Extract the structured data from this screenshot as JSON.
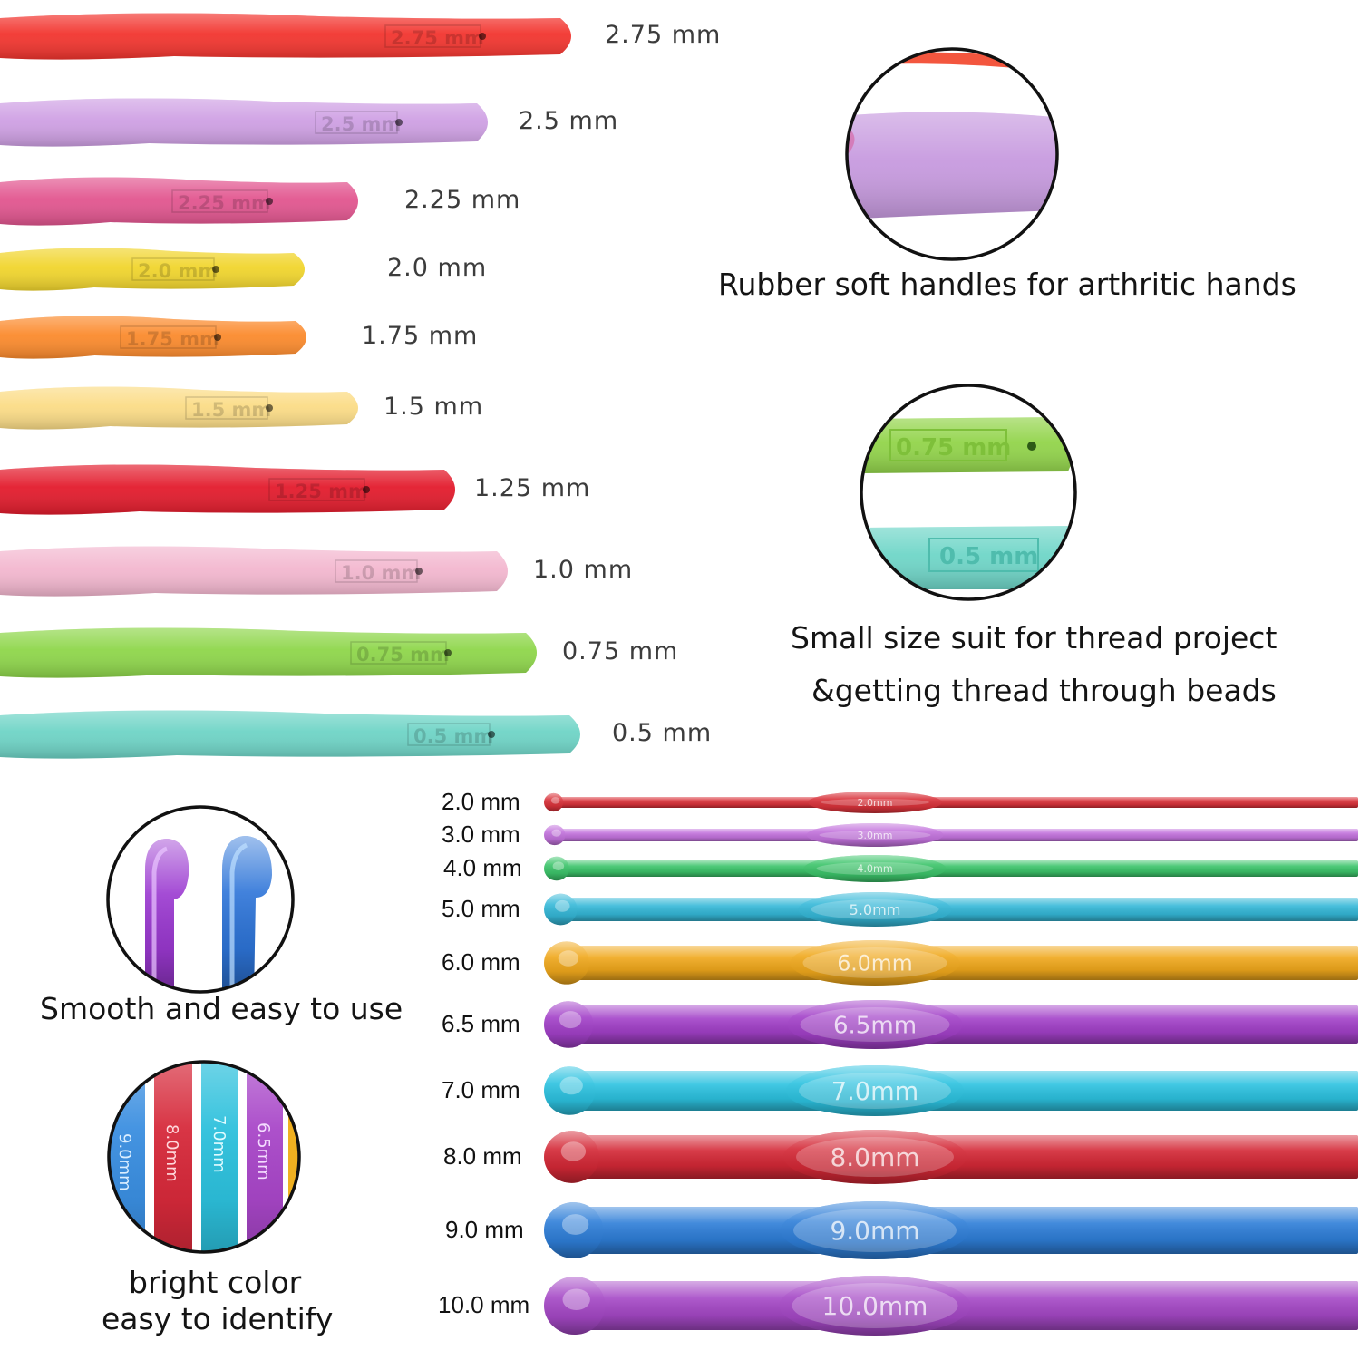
{
  "soft_handles": [
    {
      "size": "2.75 mm",
      "color": "#f2342e",
      "engraved": "2.75 mm"
    },
    {
      "size": "2.5 mm",
      "color": "#cfa0e4",
      "engraved": "2.5 mm"
    },
    {
      "size": "2.25 mm",
      "color": "#e2558f",
      "engraved": "2.25 mm"
    },
    {
      "size": "2.0 mm",
      "color": "#f1d52c",
      "engraved": "2.0 mm"
    },
    {
      "size": "1.75 mm",
      "color": "#fb8a2c",
      "engraved": "1.75 mm"
    },
    {
      "size": "1.5 mm",
      "color": "#fbdc86",
      "engraved": "1.5 mm"
    },
    {
      "size": "1.25 mm",
      "color": "#e31b2c",
      "engraved": "1.25 mm"
    },
    {
      "size": "1.0 mm",
      "color": "#f3b7cf",
      "engraved": "1.0 mm"
    },
    {
      "size": "0.75 mm",
      "color": "#8ed64a",
      "engraved": "0.75 mm"
    },
    {
      "size": "0.5 mm",
      "color": "#6ed4c6",
      "engraved": "0.5 mm"
    }
  ],
  "aluminum_hooks": [
    {
      "size": "2.0 mm",
      "color": "#d9323a",
      "engraved": "2.0mm"
    },
    {
      "size": "3.0 mm",
      "color": "#c272dc",
      "engraved": "3.0mm"
    },
    {
      "size": "4.0 mm",
      "color": "#3cc46a",
      "engraved": "4.0mm"
    },
    {
      "size": "5.0 mm",
      "color": "#35b8d8",
      "engraved": "5.0mm"
    },
    {
      "size": "6.0 mm",
      "color": "#f0a81c",
      "engraved": "6.0mm"
    },
    {
      "size": "6.5 mm",
      "color": "#a240c8",
      "engraved": "6.5mm"
    },
    {
      "size": "7.0 mm",
      "color": "#2cc2e0",
      "engraved": "7.0mm"
    },
    {
      "size": "8.0 mm",
      "color": "#d42836",
      "engraved": "8.0mm"
    },
    {
      "size": "9.0 mm",
      "color": "#2e7ed8",
      "engraved": "9.0mm"
    },
    {
      "size": "10.0 mm",
      "color": "#a548c6",
      "engraved": "10.0mm"
    }
  ],
  "captions": {
    "soft_handles": "Rubber soft handles for arthritic hands",
    "small_size_line1": "Small size suit for thread project",
    "small_size_line2": "&getting thread through beads",
    "smooth": "Smooth and easy to use",
    "bright_line1": "bright color",
    "bright_line2": "easy to identify"
  },
  "zoom_insets": {
    "small_size": [
      "0.75 mm",
      "0.5 mm"
    ],
    "bright_color": [
      "9.0mm",
      "8.0mm",
      "7.0mm",
      "6.5mm"
    ]
  }
}
